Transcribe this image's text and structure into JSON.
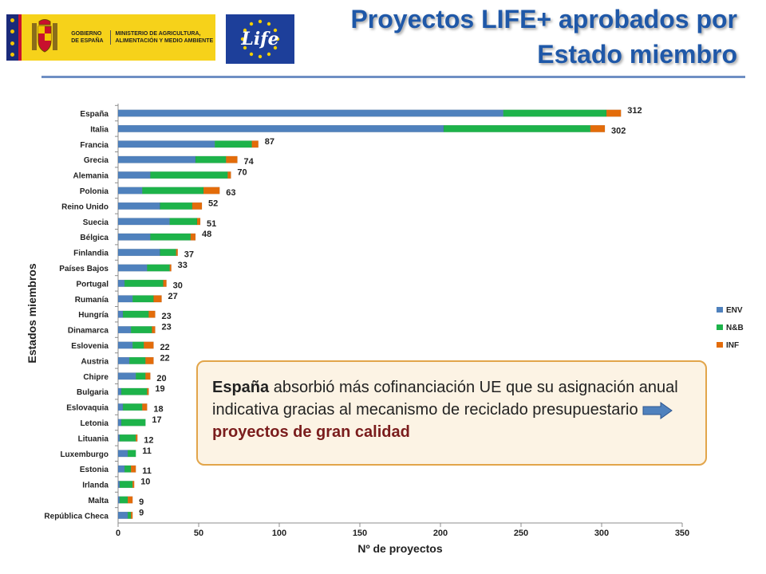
{
  "header": {
    "title_line1": "Proyectos LIFE+ aprobados por",
    "title_line2": "Estado miembro",
    "gov_logo_text1": "GOBIERNO DE ESPAÑA",
    "gov_logo_text2": "MINISTERIO DE AGRICULTURA, ALIMENTACIÓN Y MEDIO AMBIENTE",
    "eu_logo_text": "Life"
  },
  "callout": {
    "part1_bold": "España",
    "part1_rest": " absorbió más cofinanciación UE que su asignación anual indicativa gracias al mecanismo de reciclado presupuestario",
    "part2_bold": "proyectos de gran calidad"
  },
  "colors": {
    "ENV": "#4f81bd",
    "N&B": "#1db34a",
    "INF": "#e36c0a",
    "title": "#1f58a8",
    "callout_border": "#e2a54a"
  },
  "chart_data": {
    "type": "bar",
    "orientation": "horizontal",
    "stacked": true,
    "xlabel": "Nº de proyectos",
    "ylabel": "Estados miembros",
    "xlim": [
      0,
      350
    ],
    "xticks": [
      0,
      50,
      100,
      150,
      200,
      250,
      300,
      350
    ],
    "legend_position": "right",
    "categories": [
      "España",
      "Italia",
      "Francia",
      "Grecia",
      "Alemania",
      "Polonia",
      "Reino Unido",
      "Suecia",
      "Bélgica",
      "Finlandia",
      "Países Bajos",
      "Portugal",
      "Rumanía",
      "Hungría",
      "Dinamarca",
      "Eslovenia",
      "Austria",
      "Chipre",
      "Bulgaria",
      "Eslovaquia",
      "Letonia",
      "Lituania",
      "Luxemburgo",
      "Estonia",
      "Irlanda",
      "Malta",
      "República Checa"
    ],
    "totals": [
      312,
      302,
      87,
      74,
      70,
      63,
      52,
      51,
      48,
      37,
      33,
      30,
      27,
      23,
      23,
      22,
      22,
      20,
      19,
      18,
      17,
      12,
      11,
      11,
      10,
      9,
      9
    ],
    "series": [
      {
        "name": "ENV",
        "values": [
          239,
          202,
          60,
          48,
          20,
          15,
          26,
          32,
          20,
          26,
          18,
          4,
          9,
          3,
          8,
          9,
          7,
          11,
          2,
          3,
          2,
          1,
          6,
          4,
          1,
          1,
          6
        ]
      },
      {
        "name": "N&B",
        "values": [
          64,
          91,
          23,
          19,
          48,
          38,
          20,
          17,
          25,
          10,
          14,
          24,
          13,
          16,
          13,
          7,
          10,
          6,
          16,
          12,
          15,
          10,
          5,
          4,
          8,
          5,
          2
        ]
      },
      {
        "name": "INF",
        "values": [
          9,
          9,
          4,
          7,
          2,
          10,
          6,
          2,
          3,
          1,
          1,
          2,
          5,
          4,
          2,
          6,
          5,
          3,
          1,
          3,
          0,
          1,
          0,
          3,
          1,
          3,
          1
        ]
      }
    ]
  }
}
